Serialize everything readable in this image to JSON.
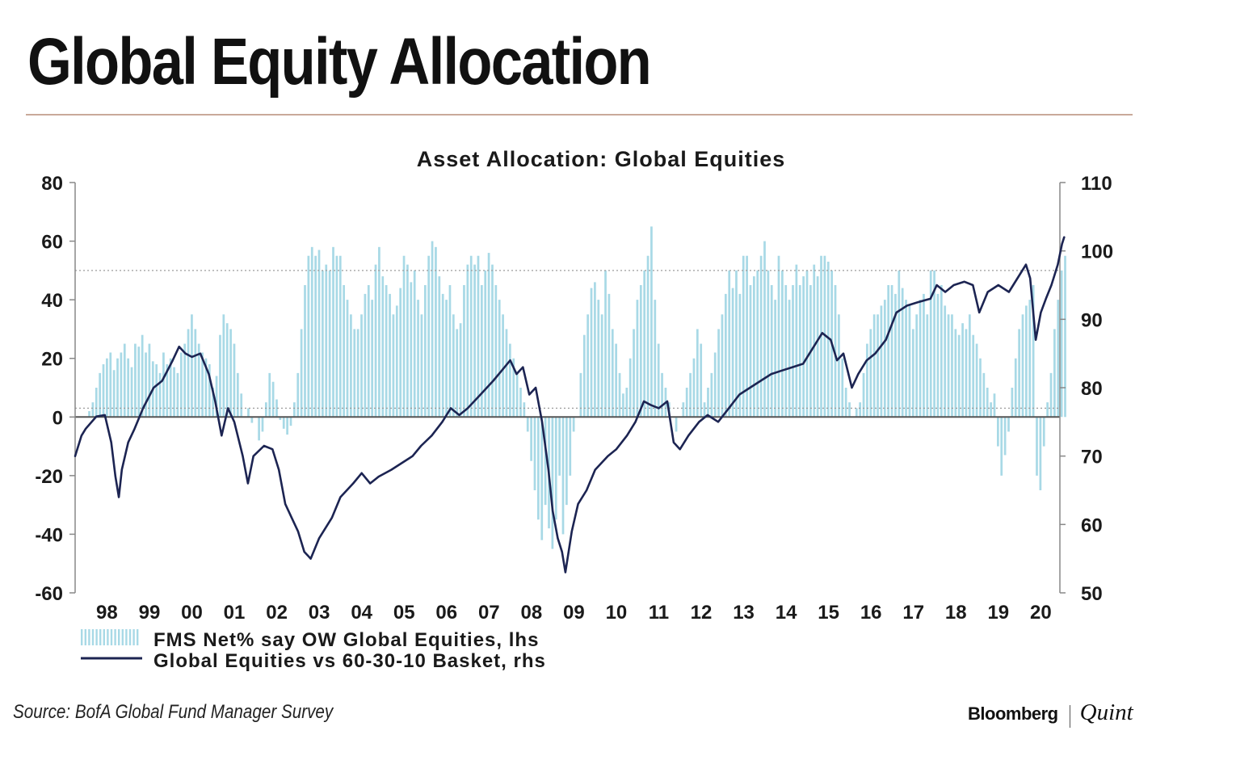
{
  "page": {
    "title": "Global Equity Allocation",
    "source": "Source: BofA Global Fund Manager Survey",
    "brand_left": "Bloomberg",
    "brand_right": "Quint"
  },
  "colors": {
    "bars": "#a8d9e6",
    "line": "#1c2452",
    "zero_line": "#555555",
    "ref_lines": "#9c9c9c",
    "axis": "#888888",
    "text": "#1a1a1a",
    "rule": "#c9a99a"
  },
  "chart_data": {
    "type": "bar+line",
    "title": "Asset Allocation: Global Equities",
    "xlabel": "",
    "ylabel_left": "",
    "ylabel_right": "",
    "x_range": [
      1997.75,
      2020.95
    ],
    "left_axis": {
      "ylim": [
        -60,
        80
      ],
      "ticks": [
        "80",
        "60",
        "40",
        "20",
        "0",
        "-20",
        "-40",
        "-60"
      ]
    },
    "right_axis": {
      "ylim": [
        50,
        110
      ],
      "ticks": [
        "110",
        "100",
        "90",
        "80",
        "70",
        "60",
        "50"
      ]
    },
    "x_ticks": [
      {
        "year": 1998,
        "label": "98"
      },
      {
        "year": 1999,
        "label": "99"
      },
      {
        "year": 2000,
        "label": "00"
      },
      {
        "year": 2001,
        "label": "01"
      },
      {
        "year": 2002,
        "label": "02"
      },
      {
        "year": 2003,
        "label": "03"
      },
      {
        "year": 2004,
        "label": "04"
      },
      {
        "year": 2005,
        "label": "05"
      },
      {
        "year": 2006,
        "label": "06"
      },
      {
        "year": 2007,
        "label": "07"
      },
      {
        "year": 2008,
        "label": "08"
      },
      {
        "year": 2009,
        "label": "09"
      },
      {
        "year": 2010,
        "label": "10"
      },
      {
        "year": 2011,
        "label": "11"
      },
      {
        "year": 2012,
        "label": "12"
      },
      {
        "year": 2013,
        "label": "13"
      },
      {
        "year": 2014,
        "label": "14"
      },
      {
        "year": 2015,
        "label": "15"
      },
      {
        "year": 2016,
        "label": "16"
      },
      {
        "year": 2017,
        "label": "17"
      },
      {
        "year": 2018,
        "label": "18"
      },
      {
        "year": 2019,
        "label": "19"
      },
      {
        "year": 2020,
        "label": "20"
      }
    ],
    "reference_lines_left": [
      50,
      3
    ],
    "series": [
      {
        "name": "FMS Net% say OW Global Equities, lhs",
        "kind": "bar",
        "axis": "left",
        "start": 1998.0,
        "step": 0.0833,
        "values": [
          0,
          2,
          5,
          10,
          15,
          18,
          20,
          22,
          16,
          20,
          22,
          25,
          20,
          17,
          25,
          24,
          28,
          22,
          25,
          19,
          18,
          15,
          22,
          18,
          20,
          17,
          15,
          22,
          25,
          30,
          35,
          30,
          25,
          22,
          20,
          18,
          10,
          14,
          28,
          35,
          32,
          30,
          25,
          15,
          8,
          0,
          3,
          -2,
          0,
          -8,
          -5,
          5,
          15,
          12,
          6,
          -1,
          -4,
          -6,
          -3,
          5,
          15,
          30,
          45,
          55,
          58,
          55,
          57,
          50,
          52,
          50,
          58,
          55,
          55,
          45,
          40,
          35,
          30,
          30,
          35,
          42,
          45,
          40,
          52,
          58,
          48,
          45,
          42,
          35,
          38,
          44,
          55,
          52,
          46,
          50,
          40,
          35,
          45,
          55,
          60,
          58,
          48,
          42,
          40,
          45,
          35,
          30,
          32,
          45,
          52,
          55,
          52,
          55,
          45,
          50,
          56,
          52,
          45,
          40,
          35,
          30,
          25,
          20,
          15,
          10,
          5,
          -5,
          -15,
          -25,
          -35,
          -42,
          -30,
          -38,
          -45,
          -35,
          -20,
          -40,
          -30,
          -20,
          -5,
          0,
          15,
          28,
          35,
          44,
          46,
          40,
          35,
          50,
          42,
          30,
          25,
          15,
          8,
          10,
          20,
          30,
          40,
          45,
          50,
          55,
          65,
          40,
          25,
          15,
          10,
          5,
          0,
          -5,
          0,
          5,
          10,
          15,
          20,
          30,
          25,
          5,
          10,
          15,
          22,
          30,
          35,
          42,
          50,
          44,
          50,
          42,
          55,
          55,
          45,
          48,
          50,
          55,
          60,
          50,
          45,
          40,
          55,
          50,
          45,
          40,
          45,
          52,
          45,
          48,
          50,
          45,
          52,
          48,
          55,
          55,
          53,
          50,
          45,
          35,
          20,
          10,
          5,
          0,
          3,
          5,
          15,
          25,
          30,
          35,
          35,
          38,
          40,
          45,
          45,
          42,
          50,
          44,
          40,
          38,
          30,
          35,
          40,
          42,
          35,
          50,
          50,
          42,
          45,
          38,
          35,
          35,
          30,
          28,
          32,
          30,
          35,
          28,
          25,
          20,
          15,
          10,
          5,
          8,
          -10,
          -20,
          -13,
          -5,
          10,
          20,
          30,
          35,
          38,
          40,
          45,
          -20,
          -25,
          -10,
          5,
          15,
          30,
          40,
          50,
          55
        ]
      },
      {
        "name": "Global Equities vs 60-30-10 Basket, rhs",
        "kind": "line",
        "axis": "right",
        "points": [
          [
            1997.75,
            70
          ],
          [
            1997.9,
            73
          ],
          [
            1998.0,
            74
          ],
          [
            1998.25,
            75.8
          ],
          [
            1998.45,
            76
          ],
          [
            1998.6,
            72
          ],
          [
            1998.7,
            67
          ],
          [
            1998.78,
            64
          ],
          [
            1998.85,
            68
          ],
          [
            1999.0,
            72
          ],
          [
            1999.15,
            74
          ],
          [
            1999.35,
            77
          ],
          [
            1999.6,
            80
          ],
          [
            1999.8,
            81
          ],
          [
            2000.05,
            84
          ],
          [
            2000.2,
            86
          ],
          [
            2000.35,
            85
          ],
          [
            2000.5,
            84.5
          ],
          [
            2000.7,
            85
          ],
          [
            2000.9,
            82
          ],
          [
            2001.05,
            78
          ],
          [
            2001.2,
            73
          ],
          [
            2001.35,
            77
          ],
          [
            2001.5,
            75
          ],
          [
            2001.7,
            70
          ],
          [
            2001.82,
            66
          ],
          [
            2001.95,
            70
          ],
          [
            2002.2,
            71.5
          ],
          [
            2002.4,
            71
          ],
          [
            2002.55,
            68
          ],
          [
            2002.7,
            63
          ],
          [
            2002.85,
            61
          ],
          [
            2003.0,
            59
          ],
          [
            2003.15,
            56
          ],
          [
            2003.3,
            55
          ],
          [
            2003.5,
            58
          ],
          [
            2003.8,
            61
          ],
          [
            2004.0,
            64
          ],
          [
            2004.3,
            66
          ],
          [
            2004.5,
            67.5
          ],
          [
            2004.7,
            66
          ],
          [
            2004.9,
            67
          ],
          [
            2005.2,
            68
          ],
          [
            2005.45,
            69
          ],
          [
            2005.7,
            70
          ],
          [
            2005.9,
            71.5
          ],
          [
            2006.15,
            73
          ],
          [
            2006.4,
            75
          ],
          [
            2006.6,
            77
          ],
          [
            2006.8,
            76
          ],
          [
            2007.0,
            77
          ],
          [
            2007.3,
            79
          ],
          [
            2007.6,
            81
          ],
          [
            2007.8,
            82.5
          ],
          [
            2008.0,
            84
          ],
          [
            2008.15,
            82
          ],
          [
            2008.3,
            83
          ],
          [
            2008.45,
            79
          ],
          [
            2008.6,
            80
          ],
          [
            2008.75,
            75
          ],
          [
            2008.9,
            68
          ],
          [
            2009.0,
            62
          ],
          [
            2009.12,
            58
          ],
          [
            2009.22,
            56
          ],
          [
            2009.3,
            53
          ],
          [
            2009.45,
            59
          ],
          [
            2009.6,
            63
          ],
          [
            2009.8,
            65
          ],
          [
            2010.0,
            68
          ],
          [
            2010.3,
            70
          ],
          [
            2010.5,
            71
          ],
          [
            2010.75,
            73
          ],
          [
            2010.95,
            75
          ],
          [
            2011.15,
            78
          ],
          [
            2011.3,
            77.5
          ],
          [
            2011.5,
            77
          ],
          [
            2011.7,
            78
          ],
          [
            2011.85,
            72
          ],
          [
            2012.0,
            71
          ],
          [
            2012.2,
            73
          ],
          [
            2012.45,
            75
          ],
          [
            2012.65,
            76
          ],
          [
            2012.9,
            75
          ],
          [
            2013.15,
            77
          ],
          [
            2013.4,
            79
          ],
          [
            2013.65,
            80
          ],
          [
            2013.9,
            81
          ],
          [
            2014.15,
            82
          ],
          [
            2014.4,
            82.5
          ],
          [
            2014.65,
            83
          ],
          [
            2014.9,
            83.5
          ],
          [
            2015.15,
            86
          ],
          [
            2015.35,
            88
          ],
          [
            2015.55,
            87
          ],
          [
            2015.7,
            84
          ],
          [
            2015.85,
            85
          ],
          [
            2016.05,
            80
          ],
          [
            2016.2,
            82
          ],
          [
            2016.4,
            84
          ],
          [
            2016.6,
            85
          ],
          [
            2016.85,
            87
          ],
          [
            2017.1,
            91
          ],
          [
            2017.35,
            92
          ],
          [
            2017.6,
            92.5
          ],
          [
            2017.9,
            93
          ],
          [
            2018.05,
            95
          ],
          [
            2018.25,
            94
          ],
          [
            2018.45,
            95
          ],
          [
            2018.7,
            95.5
          ],
          [
            2018.9,
            95
          ],
          [
            2019.05,
            91
          ],
          [
            2019.25,
            94
          ],
          [
            2019.5,
            95
          ],
          [
            2019.75,
            94
          ],
          [
            2019.95,
            96
          ],
          [
            2020.15,
            98
          ],
          [
            2020.25,
            96
          ],
          [
            2020.38,
            87
          ],
          [
            2020.5,
            91
          ],
          [
            2020.62,
            93
          ],
          [
            2020.75,
            95
          ],
          [
            2020.9,
            98
          ],
          [
            2021.0,
            101
          ],
          [
            2021.05,
            102
          ]
        ]
      }
    ],
    "legend": [
      {
        "label": "FMS Net% say OW Global Equities, lhs",
        "swatch": "bar"
      },
      {
        "label": "Global Equities vs 60-30-10 Basket, rhs",
        "swatch": "line"
      }
    ]
  }
}
